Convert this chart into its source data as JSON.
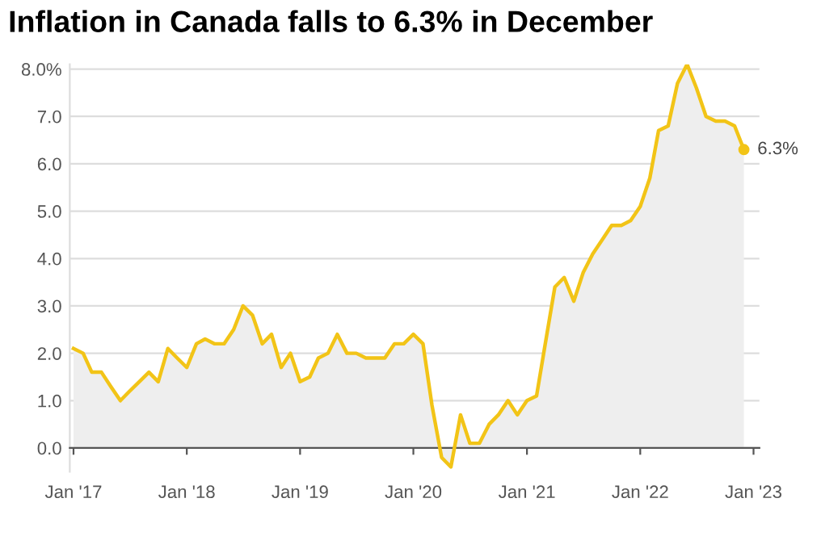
{
  "chart_data": {
    "type": "area",
    "title": "Inflation in Canada falls to 6.3% in December",
    "x": [
      "2017-01",
      "2017-02",
      "2017-03",
      "2017-04",
      "2017-05",
      "2017-06",
      "2017-07",
      "2017-08",
      "2017-09",
      "2017-10",
      "2017-11",
      "2017-12",
      "2018-01",
      "2018-02",
      "2018-03",
      "2018-04",
      "2018-05",
      "2018-06",
      "2018-07",
      "2018-08",
      "2018-09",
      "2018-10",
      "2018-11",
      "2018-12",
      "2019-01",
      "2019-02",
      "2019-03",
      "2019-04",
      "2019-05",
      "2019-06",
      "2019-07",
      "2019-08",
      "2019-09",
      "2019-10",
      "2019-11",
      "2019-12",
      "2020-01",
      "2020-02",
      "2020-03",
      "2020-04",
      "2020-05",
      "2020-06",
      "2020-07",
      "2020-08",
      "2020-09",
      "2020-10",
      "2020-11",
      "2020-12",
      "2021-01",
      "2021-02",
      "2021-03",
      "2021-04",
      "2021-05",
      "2021-06",
      "2021-07",
      "2021-08",
      "2021-09",
      "2021-10",
      "2021-11",
      "2021-12",
      "2022-01",
      "2022-02",
      "2022-03",
      "2022-04",
      "2022-05",
      "2022-06",
      "2022-07",
      "2022-08",
      "2022-09",
      "2022-10",
      "2022-11",
      "2022-12"
    ],
    "series": [
      {
        "color": "#f2c417",
        "values": [
          2.1,
          2.0,
          1.6,
          1.6,
          1.3,
          1.0,
          1.2,
          1.4,
          1.6,
          1.4,
          2.1,
          1.9,
          1.7,
          2.2,
          2.3,
          2.2,
          2.2,
          2.5,
          3.0,
          2.8,
          2.2,
          2.4,
          1.7,
          2.0,
          1.4,
          1.5,
          1.9,
          2.0,
          2.4,
          2.0,
          2.0,
          1.9,
          1.9,
          1.9,
          2.2,
          2.2,
          2.4,
          2.2,
          0.9,
          -0.2,
          -0.4,
          0.7,
          0.1,
          0.1,
          0.5,
          0.7,
          1.0,
          0.7,
          1.0,
          1.1,
          2.2,
          3.4,
          3.6,
          3.1,
          3.7,
          4.1,
          4.4,
          4.7,
          4.7,
          4.8,
          5.1,
          5.7,
          6.7,
          6.8,
          7.7,
          8.1,
          7.6,
          7.0,
          6.9,
          6.9,
          6.8,
          6.3
        ]
      }
    ],
    "annotations": [
      {
        "text": "6.3%",
        "x": "2022-12",
        "y": 6.3
      }
    ],
    "xlim": [
      "2016-12-20",
      "2023-01-20"
    ],
    "xticks": [
      {
        "value": "2017-01",
        "label": "Jan '17"
      },
      {
        "value": "2018-01",
        "label": "Jan '18"
      },
      {
        "value": "2019-01",
        "label": "Jan '19"
      },
      {
        "value": "2020-01",
        "label": "Jan '20"
      },
      {
        "value": "2021-01",
        "label": "Jan '21"
      },
      {
        "value": "2022-01",
        "label": "Jan '22"
      },
      {
        "value": "2023-01",
        "label": "Jan '23"
      }
    ],
    "ylim": [
      -0.5,
      8.1
    ],
    "yticks": [
      {
        "value": 0,
        "label": "0.0"
      },
      {
        "value": 1,
        "label": "1.0"
      },
      {
        "value": 2,
        "label": "2.0"
      },
      {
        "value": 3,
        "label": "3.0"
      },
      {
        "value": 4,
        "label": "4.0"
      },
      {
        "value": 5,
        "label": "5.0"
      },
      {
        "value": 6,
        "label": "6.0"
      },
      {
        "value": 7,
        "label": "7.0"
      },
      {
        "value": 8,
        "label": "8.0%"
      }
    ],
    "grid": "y",
    "marker": "none",
    "line_style": "solid"
  }
}
